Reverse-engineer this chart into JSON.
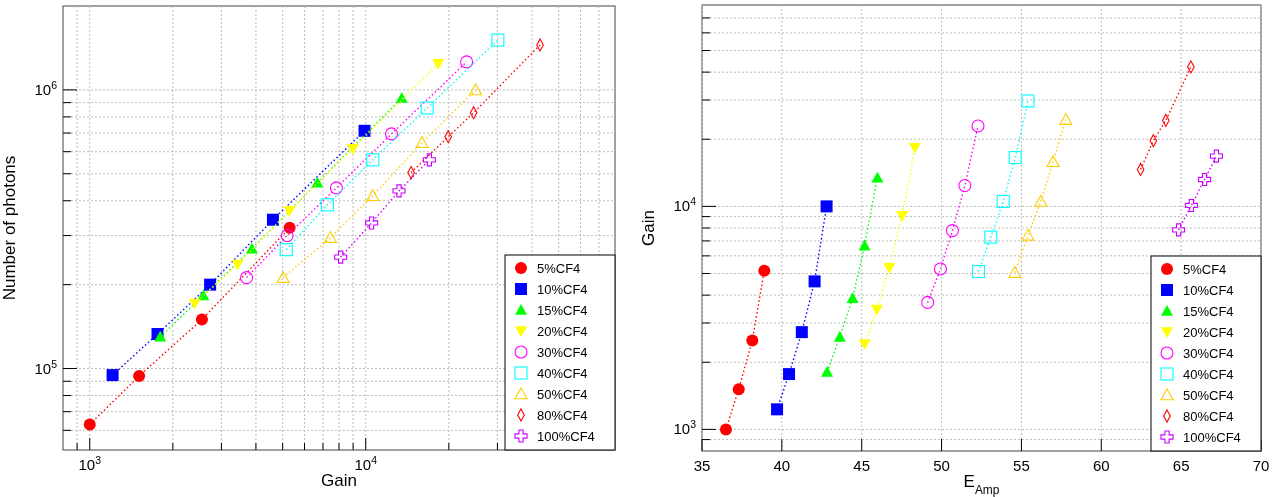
{
  "chart_data": [
    {
      "type": "line",
      "xlabel": "Gain",
      "ylabel": "Number of photons",
      "log": "xy",
      "grid": true,
      "legend": "bottom right",
      "line_style": "dotted",
      "xlim": [
        800,
        80000
      ],
      "ylim": [
        51000,
        2000000
      ],
      "xticks": [
        {
          "value": 900,
          "label": null
        },
        {
          "value": 1000,
          "label": "10$^{3}$"
        },
        {
          "value": 2000,
          "label": null
        },
        {
          "value": 3000,
          "label": null
        },
        {
          "value": 4000,
          "label": null
        },
        {
          "value": 5000,
          "label": null
        },
        {
          "value": 6000,
          "label": null
        },
        {
          "value": 7000,
          "label": null
        },
        {
          "value": 8000,
          "label": null
        },
        {
          "value": 9000,
          "label": null
        },
        {
          "value": 10000,
          "label": "10$^{4}$"
        },
        {
          "value": 20000,
          "label": null
        },
        {
          "value": 30000,
          "label": null
        },
        {
          "value": 40000,
          "label": null
        },
        {
          "value": 50000,
          "label": null
        },
        {
          "value": 60000,
          "label": null
        },
        {
          "value": 70000,
          "label": null
        }
      ],
      "yticks": [
        {
          "value": 60000,
          "label": null
        },
        {
          "value": 70000,
          "label": null
        },
        {
          "value": 80000,
          "label": null
        },
        {
          "value": 90000,
          "label": null
        },
        {
          "value": 100000,
          "label": "10$^{5}$"
        },
        {
          "value": 200000,
          "label": null
        },
        {
          "value": 300000,
          "label": null
        },
        {
          "value": 400000,
          "label": null
        },
        {
          "value": 500000,
          "label": null
        },
        {
          "value": 600000,
          "label": null
        },
        {
          "value": 700000,
          "label": null
        },
        {
          "value": 800000,
          "label": null
        },
        {
          "value": 900000,
          "label": null
        },
        {
          "value": 1000000,
          "label": "10$^{6}$"
        }
      ],
      "series": [
        {
          "name": "5%CF4",
          "color": "#ff0000",
          "marker": "circle",
          "x": [
            1000,
            1510,
            2550,
            5300
          ],
          "values": [
            63000,
            94000,
            150000,
            320000
          ]
        },
        {
          "name": "10%CF4",
          "color": "#0000ff",
          "marker": "square",
          "x": [
            1210,
            1760,
            2730,
            4610,
            9900
          ],
          "values": [
            94700,
            133000,
            200000,
            342000,
            713000
          ]
        },
        {
          "name": "15%CF4",
          "color": "#00ff00",
          "marker": "triangle",
          "x": [
            1800,
            2580,
            3870,
            6680,
            13500
          ],
          "values": [
            130000,
            183000,
            269000,
            464000,
            936000
          ]
        },
        {
          "name": "20%CF4",
          "color": "#ffff00",
          "marker": "triangle-down",
          "x": [
            2400,
            3430,
            5290,
            8980,
            18300
          ],
          "values": [
            171000,
            236000,
            368000,
            615000,
            1240000
          ]
        },
        {
          "name": "30%CF4",
          "color": "#ff00ff",
          "marker": "circle-open",
          "x": [
            3700,
            5190,
            7830,
            12400,
            23200
          ],
          "values": [
            212000,
            300000,
            445000,
            695000,
            1260000
          ]
        },
        {
          "name": "40%CF4",
          "color": "#00ffff",
          "marker": "square-open",
          "x": [
            5150,
            7260,
            10600,
            16700,
            30100
          ],
          "values": [
            267000,
            387000,
            561000,
            861000,
            1510000
          ]
        },
        {
          "name": "50%CF4",
          "color": "#ffcc00",
          "marker": "triangle-open",
          "x": [
            5020,
            7450,
            10600,
            16000,
            25000
          ],
          "values": [
            212000,
            295000,
            417000,
            646000,
            1000000
          ]
        },
        {
          "name": "80%CF4",
          "color": "#ff0000",
          "marker": "diamond-open",
          "x": [
            14600,
            19900,
            24600,
            42800
          ],
          "values": [
            505000,
            679000,
            828000,
            1450000
          ]
        },
        {
          "name": "100%CF4",
          "color": "#cc00ff",
          "marker": "cross-open",
          "x": [
            8110,
            10500,
            13200,
            17000
          ],
          "values": [
            251000,
            333000,
            434000,
            561000
          ]
        }
      ]
    },
    {
      "type": "line",
      "xlabel": "E$_{Amp}$",
      "ylabel": "Gain",
      "log": "y",
      "grid": true,
      "legend": "bottom right",
      "line_style": "dotted",
      "xlim": [
        35,
        70
      ],
      "ylim": [
        800,
        80000
      ],
      "xticks": [
        35,
        40,
        45,
        50,
        55,
        60,
        65,
        70
      ],
      "yticks": [
        {
          "value": 900,
          "label": null
        },
        {
          "value": 1000,
          "label": "10$^{3}$"
        },
        {
          "value": 2000,
          "label": null
        },
        {
          "value": 3000,
          "label": null
        },
        {
          "value": 4000,
          "label": null
        },
        {
          "value": 5000,
          "label": null
        },
        {
          "value": 6000,
          "label": null
        },
        {
          "value": 7000,
          "label": null
        },
        {
          "value": 8000,
          "label": null
        },
        {
          "value": 9000,
          "label": null
        },
        {
          "value": 10000,
          "label": "10$^{4}$"
        },
        {
          "value": 20000,
          "label": null
        },
        {
          "value": 30000,
          "label": null
        },
        {
          "value": 40000,
          "label": null
        },
        {
          "value": 50000,
          "label": null
        },
        {
          "value": 60000,
          "label": null
        },
        {
          "value": 70000,
          "label": null
        }
      ],
      "series": [
        {
          "name": "5%CF4",
          "color": "#ff0000",
          "marker": "circle",
          "x": [
            36.5,
            37.3,
            38.15,
            38.9
          ],
          "values": [
            1000,
            1515,
            2505,
            5150
          ]
        },
        {
          "name": "10%CF4",
          "color": "#0000ff",
          "marker": "square",
          "x": [
            39.7,
            40.45,
            41.25,
            42.05,
            42.8
          ],
          "values": [
            1230,
            1770,
            2730,
            4610,
            10000
          ]
        },
        {
          "name": "15%CF4",
          "color": "#00ff00",
          "marker": "triangle",
          "x": [
            42.83,
            43.63,
            44.43,
            45.18,
            45.98
          ],
          "values": [
            1810,
            2600,
            3880,
            6670,
            13450
          ]
        },
        {
          "name": "20%CF4",
          "color": "#ffff00",
          "marker": "triangle-down",
          "x": [
            45.18,
            45.95,
            46.73,
            47.53,
            48.33
          ],
          "values": [
            2415,
            3445,
            5310,
            9070,
            18300
          ]
        },
        {
          "name": "30%CF4",
          "color": "#ff00ff",
          "marker": "circle-open",
          "x": [
            49.13,
            49.93,
            50.68,
            51.46,
            52.28
          ],
          "values": [
            3710,
            5240,
            7790,
            12400,
            22950
          ]
        },
        {
          "name": "40%CF4",
          "color": "#00ffff",
          "marker": "square-open",
          "x": [
            52.31,
            53.08,
            53.86,
            54.61,
            55.41
          ],
          "values": [
            5100,
            7280,
            10520,
            16560,
            29700
          ]
        },
        {
          "name": "50%CF4",
          "color": "#ffcc00",
          "marker": "triangle-open",
          "x": [
            54.58,
            55.41,
            56.21,
            56.98,
            57.78
          ],
          "values": [
            5050,
            7420,
            10520,
            15870,
            24500
          ]
        },
        {
          "name": "80%CF4",
          "color": "#ff0000",
          "marker": "diamond-open",
          "x": [
            62.46,
            63.26,
            64.04,
            65.61
          ],
          "values": [
            14650,
            19700,
            24300,
            42200
          ]
        },
        {
          "name": "100%CF4",
          "color": "#cc00ff",
          "marker": "cross-open",
          "x": [
            64.84,
            65.64,
            66.47,
            67.21
          ],
          "values": [
            7850,
            10100,
            13200,
            16800
          ]
        }
      ]
    }
  ]
}
